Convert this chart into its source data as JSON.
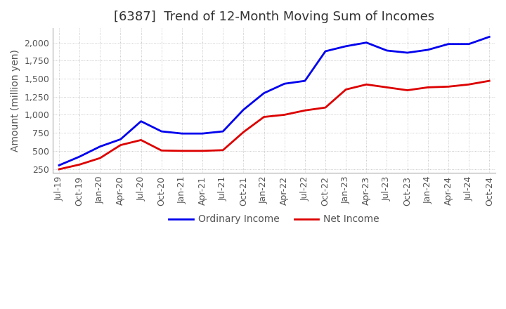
{
  "title": "[6387]  Trend of 12-Month Moving Sum of Incomes",
  "ylabel": "Amount (million yen)",
  "title_fontsize": 13,
  "label_fontsize": 10,
  "tick_fontsize": 9,
  "bg_color": "#ffffff",
  "grid_color": "#bbbbbb",
  "ordinary_color": "#0000ee",
  "net_color": "#dd0000",
  "ordinary_label": "Ordinary Income",
  "net_label": "Net Income",
  "x_labels": [
    "Jul-19",
    "Oct-19",
    "Jan-20",
    "Apr-20",
    "Jul-20",
    "Oct-20",
    "Jan-21",
    "Apr-21",
    "Jul-21",
    "Oct-21",
    "Jan-22",
    "Apr-22",
    "Jul-22",
    "Oct-22",
    "Jan-23",
    "Apr-23",
    "Jul-23",
    "Oct-23",
    "Jan-24",
    "Apr-24",
    "Jul-24",
    "Oct-24"
  ],
  "ordinary_income": [
    300,
    420,
    560,
    660,
    910,
    770,
    740,
    740,
    770,
    1070,
    1300,
    1430,
    1470,
    1880,
    1950,
    2000,
    1890,
    1860,
    1900,
    1980,
    1980,
    2080
  ],
  "net_income": [
    245,
    310,
    400,
    580,
    650,
    505,
    500,
    500,
    510,
    760,
    970,
    1000,
    1060,
    1100,
    1350,
    1420,
    1380,
    1340,
    1380,
    1390,
    1420,
    1470
  ],
  "ylim": [
    200,
    2200
  ],
  "yticks": [
    250,
    500,
    750,
    1000,
    1250,
    1500,
    1750,
    2000
  ]
}
